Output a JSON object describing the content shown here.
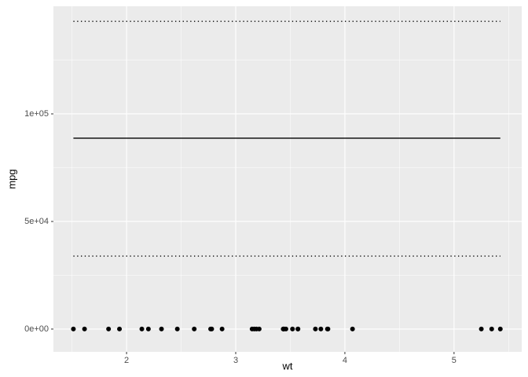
{
  "chart_data": {
    "type": "scatter",
    "x_label": "wt",
    "y_label": "mpg",
    "x": [
      2.62,
      2.875,
      2.32,
      3.215,
      3.44,
      3.46,
      3.57,
      3.19,
      3.15,
      3.44,
      3.44,
      4.07,
      3.73,
      3.78,
      5.25,
      5.424,
      5.345,
      2.2,
      1.615,
      1.835,
      2.465,
      3.52,
      3.435,
      3.84,
      3.845,
      1.935,
      2.14,
      1.513,
      3.17,
      2.77,
      3.57,
      2.78
    ],
    "values": [
      21.0,
      21.0,
      22.8,
      21.4,
      18.7,
      18.1,
      14.3,
      24.4,
      22.8,
      19.2,
      17.8,
      16.4,
      17.3,
      15.2,
      10.4,
      10.4,
      14.7,
      32.4,
      30.4,
      33.9,
      21.5,
      15.5,
      15.2,
      13.3,
      19.2,
      27.3,
      26.0,
      30.4,
      15.8,
      19.7,
      15.0,
      21.4
    ],
    "color": "#000000",
    "lines": [
      {
        "x": [
          1.513,
          5.424
        ],
        "values": [
          88700,
          88700
        ],
        "style": "solid",
        "color": "#000000"
      },
      {
        "x": [
          1.513,
          5.424
        ],
        "values": [
          143000,
          143000
        ],
        "style": "dotted",
        "color": "#000000"
      },
      {
        "x": [
          1.513,
          5.424
        ],
        "values": [
          33900,
          33900
        ],
        "style": "dotted",
        "color": "#000000"
      }
    ],
    "xlim": [
      1.33,
      5.62
    ],
    "ylim": [
      -10600,
      150000
    ],
    "xticks": [
      2,
      3,
      4,
      5
    ],
    "yticks": [
      {
        "value": 0,
        "label": "0e+00"
      },
      {
        "value": 50000,
        "label": "5e+04"
      },
      {
        "value": 100000,
        "label": "1e+05"
      }
    ],
    "grid": true
  }
}
